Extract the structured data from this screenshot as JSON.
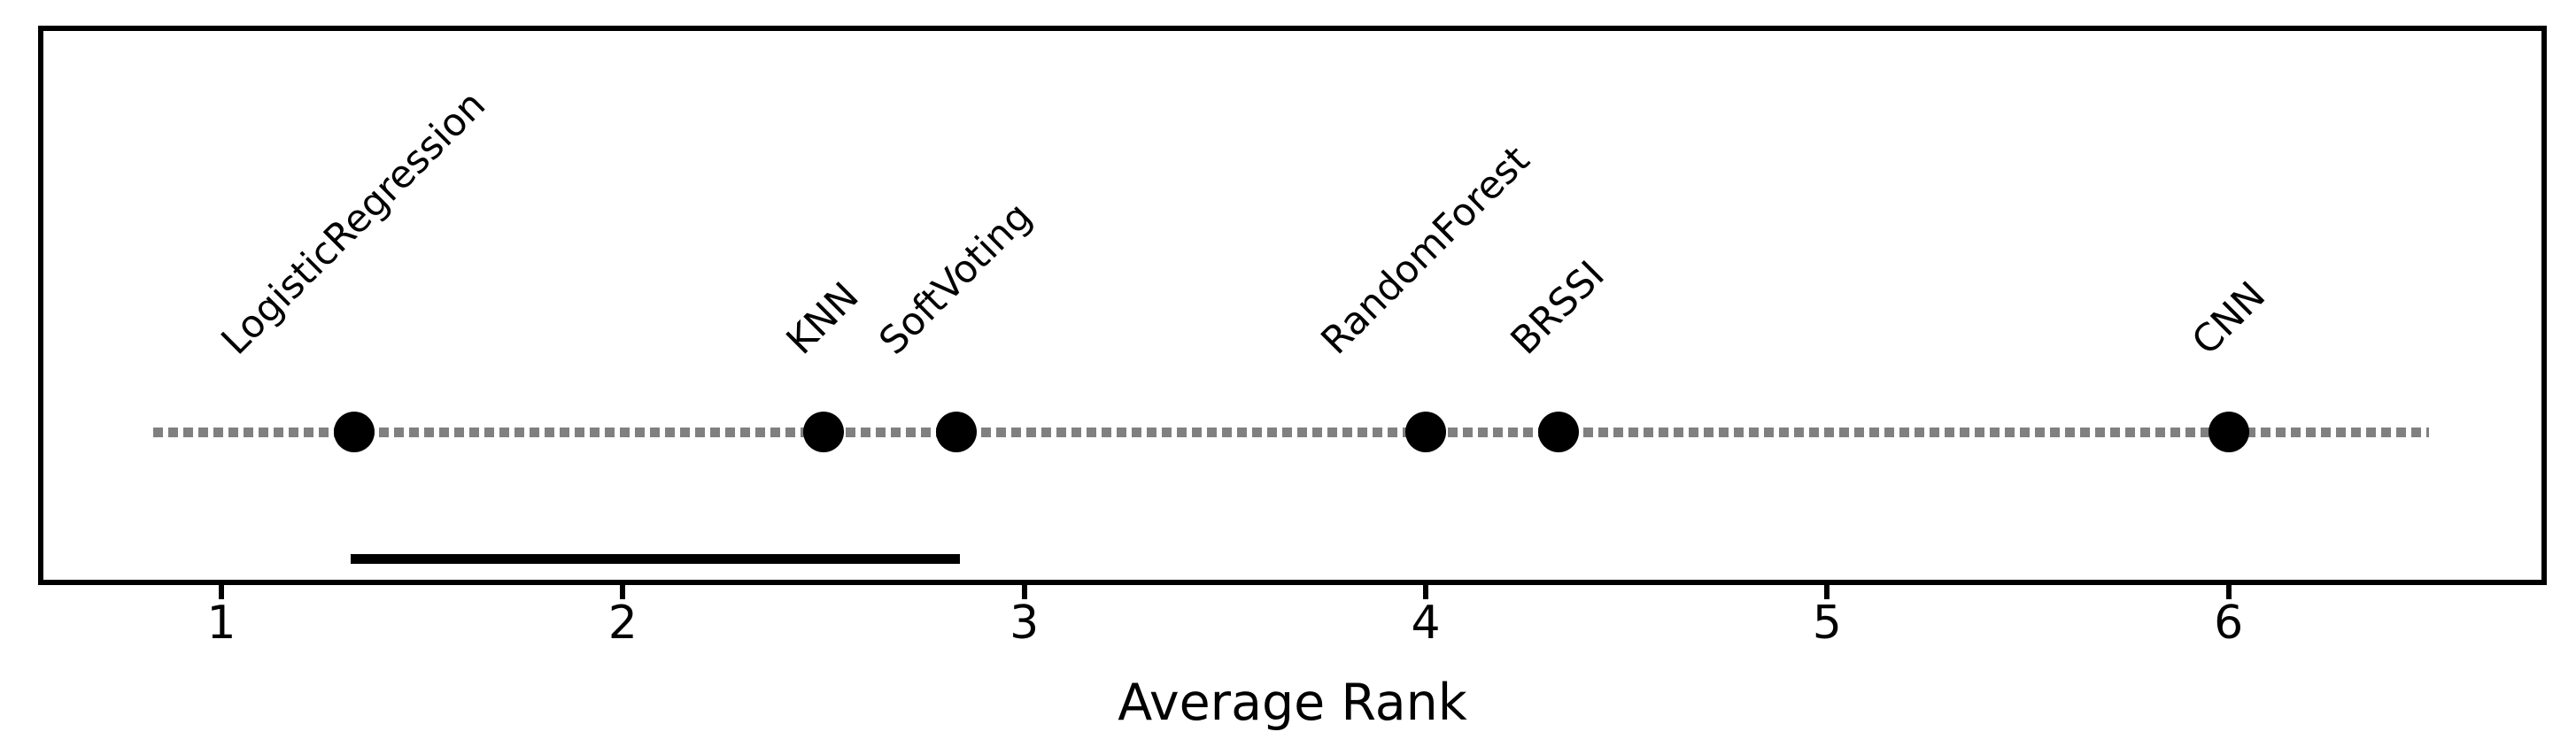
{
  "figure": {
    "background": "#ffffff"
  },
  "chart_data": {
    "type": "scatter",
    "title": "",
    "xlabel": "Average Rank",
    "ylabel": "",
    "xlim": [
      0.56,
      6.78
    ],
    "x_ticks": [
      1,
      2,
      3,
      4,
      5,
      6
    ],
    "grid": false,
    "legend": "none",
    "marker": {
      "shape": "circle",
      "color": "#000000"
    },
    "points": [
      {
        "label": "LogisticRegression",
        "rank": 1.33
      },
      {
        "label": "KNN",
        "rank": 2.5
      },
      {
        "label": "SoftVoting",
        "rank": 2.83
      },
      {
        "label": "RandomForest",
        "rank": 4.0
      },
      {
        "label": "BRSSI",
        "rank": 4.33
      },
      {
        "label": "CNN",
        "rank": 6.0
      }
    ],
    "baseline": {
      "from": 0.83,
      "to": 6.5,
      "style": "dotted",
      "color": "#808080"
    },
    "significance_bar": {
      "from": 1.33,
      "to": 2.83,
      "color": "#000000",
      "group": [
        "LogisticRegression",
        "KNN",
        "SoftVoting"
      ]
    }
  }
}
